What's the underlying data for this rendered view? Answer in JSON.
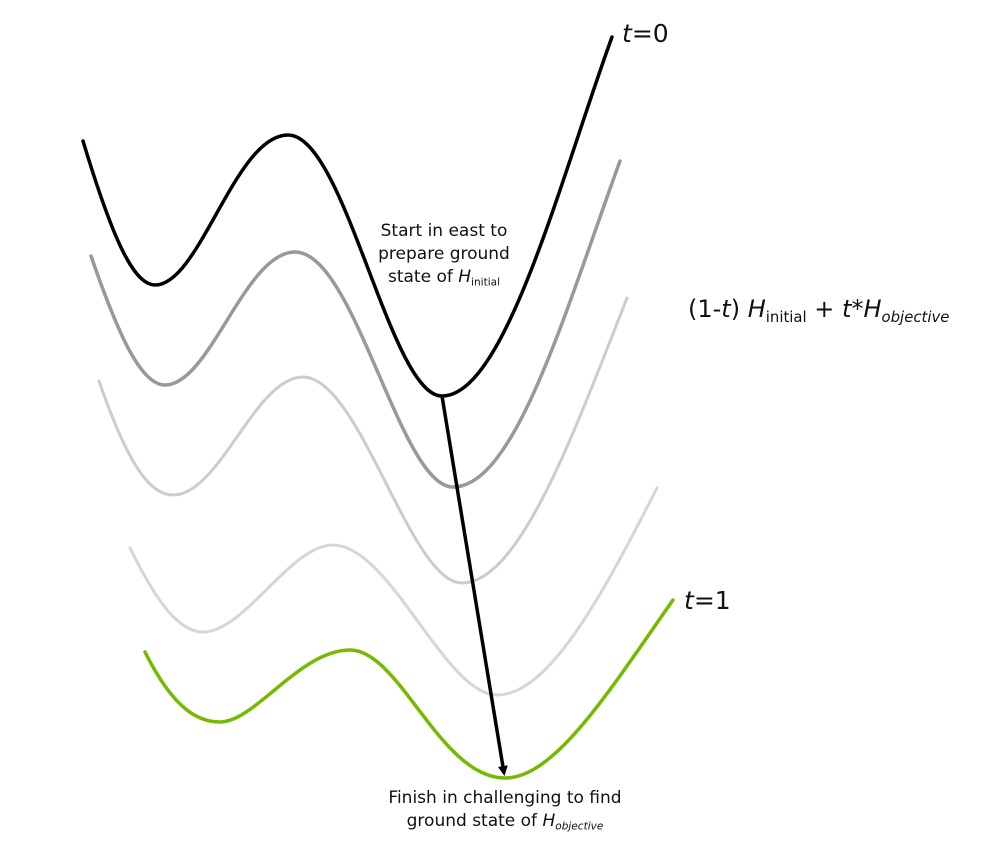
{
  "t_start": {
    "var": "t",
    "rest": "=0"
  },
  "t_end": {
    "var": "t",
    "rest": "=1"
  },
  "formula": {
    "part1": "(1-",
    "var1": "t",
    "part2": ") ",
    "h1": "H",
    "sub1": "initial",
    "part3": " + ",
    "var2": "t",
    "part4": "*",
    "h2": "H",
    "sub2": "objective"
  },
  "start_note": {
    "line1": "Start in east to",
    "line2": "prepare ground",
    "line3_text": "state of ",
    "line3_h": "H",
    "line3_sub": "initial"
  },
  "finish_note": {
    "line1": "Finish in challenging to find",
    "line2_text": "ground state of ",
    "line2_h": "H",
    "line2_sub": "objective"
  },
  "colors": {
    "curve_t0": "#000000",
    "curve_2": "#999999",
    "curve_3": "#cccccc",
    "curve_4": "#d6d6d6",
    "curve_t1": "#76b900",
    "arrow": "#000000"
  }
}
